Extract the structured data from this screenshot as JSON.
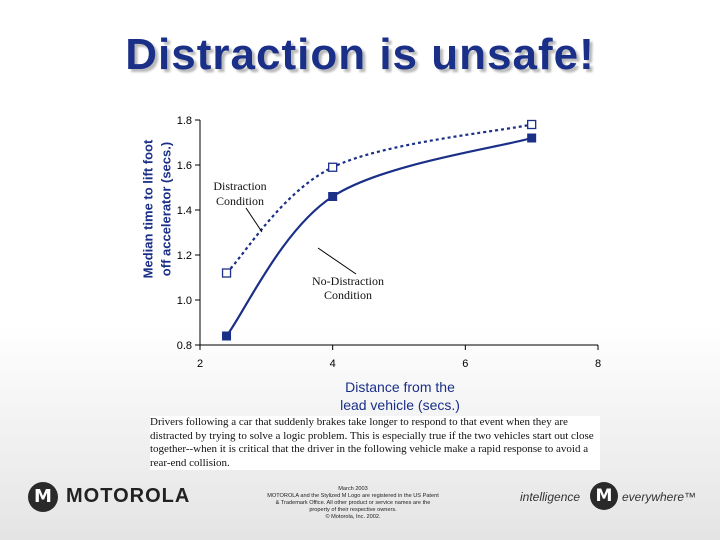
{
  "slide": {
    "title": "Distraction is unsafe!",
    "caption": "Drivers following a car that suddenly brakes take longer to respond to that event when they are distracted by trying to solve a logic problem.  This is especially true if the two vehicles start out close together--when it is critical that the driver in the following vehicle make a rapid response to avoid a rear-end collision."
  },
  "chart_data": {
    "type": "line",
    "ylabel_lines": [
      "Median time to lift foot",
      "off accelerator (secs.)"
    ],
    "xlabel_lines": [
      "Distance from the",
      "lead vehicle (secs.)"
    ],
    "xlim": [
      2,
      8
    ],
    "ylim": [
      0.8,
      1.8
    ],
    "xticks": [
      "2",
      "4",
      "6",
      "8"
    ],
    "yticks": [
      "0.8",
      "1.0",
      "1.2",
      "1.4",
      "1.6",
      "1.8"
    ],
    "grid": false,
    "series": [
      {
        "name": "Distraction Condition",
        "x": [
          2.4,
          4.0,
          7.0
        ],
        "y": [
          1.12,
          1.59,
          1.78
        ],
        "style": "dotted",
        "marker": "open-square",
        "color": "#1a2f88"
      },
      {
        "name": "No-Distraction Condition",
        "x": [
          2.4,
          4.0,
          7.0
        ],
        "y": [
          0.84,
          1.46,
          1.72
        ],
        "style": "solid",
        "marker": "filled-square",
        "color": "#1a2f88"
      }
    ],
    "annotations": [
      {
        "lines": [
          "Distraction",
          "Condition"
        ]
      },
      {
        "lines": [
          "No-Distraction",
          "Condition"
        ]
      }
    ]
  },
  "footer": {
    "logo_glyph": "M",
    "brand": "MOTOROLA",
    "legal_lines": [
      "March 2003",
      "MOTOROLA and the Stylized M Logo are registered in the US Patent",
      "& Trademark Office.  All other product or service names are the",
      "property of their respective owners.",
      "© Motorola, Inc. 2002."
    ],
    "tagline_left": "intelligence",
    "tagline_right": "everywhere™"
  },
  "colors": {
    "title": "#1a2f88",
    "series": "#1a2f88",
    "axis": "#000000"
  }
}
